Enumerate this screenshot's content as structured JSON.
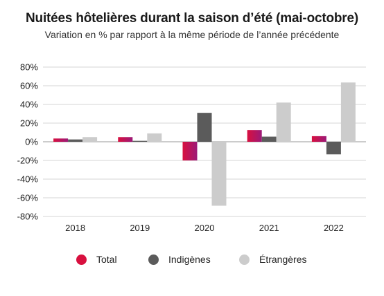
{
  "chart_data": {
    "type": "bar",
    "title": "Nuitées hôtelières durant la saison d’été (mai-octobre)",
    "subtitle": "Variation en % par rapport à la même période de l’année précédente",
    "categories": [
      "2018",
      "2019",
      "2020",
      "2021",
      "2022"
    ],
    "series": [
      {
        "name": "Total",
        "color": "#d8103f",
        "values": [
          3.5,
          5.0,
          -20.0,
          12.5,
          6.0
        ]
      },
      {
        "name": "Indigènes",
        "color": "#5b5b5b",
        "values": [
          2.5,
          1.0,
          31.0,
          5.5,
          -13.5
        ]
      },
      {
        "name": "Étrangères",
        "color": "#cccccc",
        "values": [
          5.0,
          9.0,
          -68.5,
          42.0,
          63.5
        ]
      }
    ],
    "ylim": [
      -80,
      80
    ],
    "yticks": [
      80,
      60,
      40,
      20,
      0,
      -20,
      -40,
      -60,
      -80
    ],
    "ytick_labels": [
      "80%",
      "60%",
      "40%",
      "20%",
      "0%",
      "-20%",
      "-40%",
      "-60%",
      "-80%"
    ],
    "grid": true,
    "legend_position": "bottom"
  },
  "colors": {
    "grid": "#d4d4d4",
    "zero_line": "#9a9a9a",
    "total_gradient_start": "#d8103f",
    "total_gradient_end": "#9c1a78"
  }
}
